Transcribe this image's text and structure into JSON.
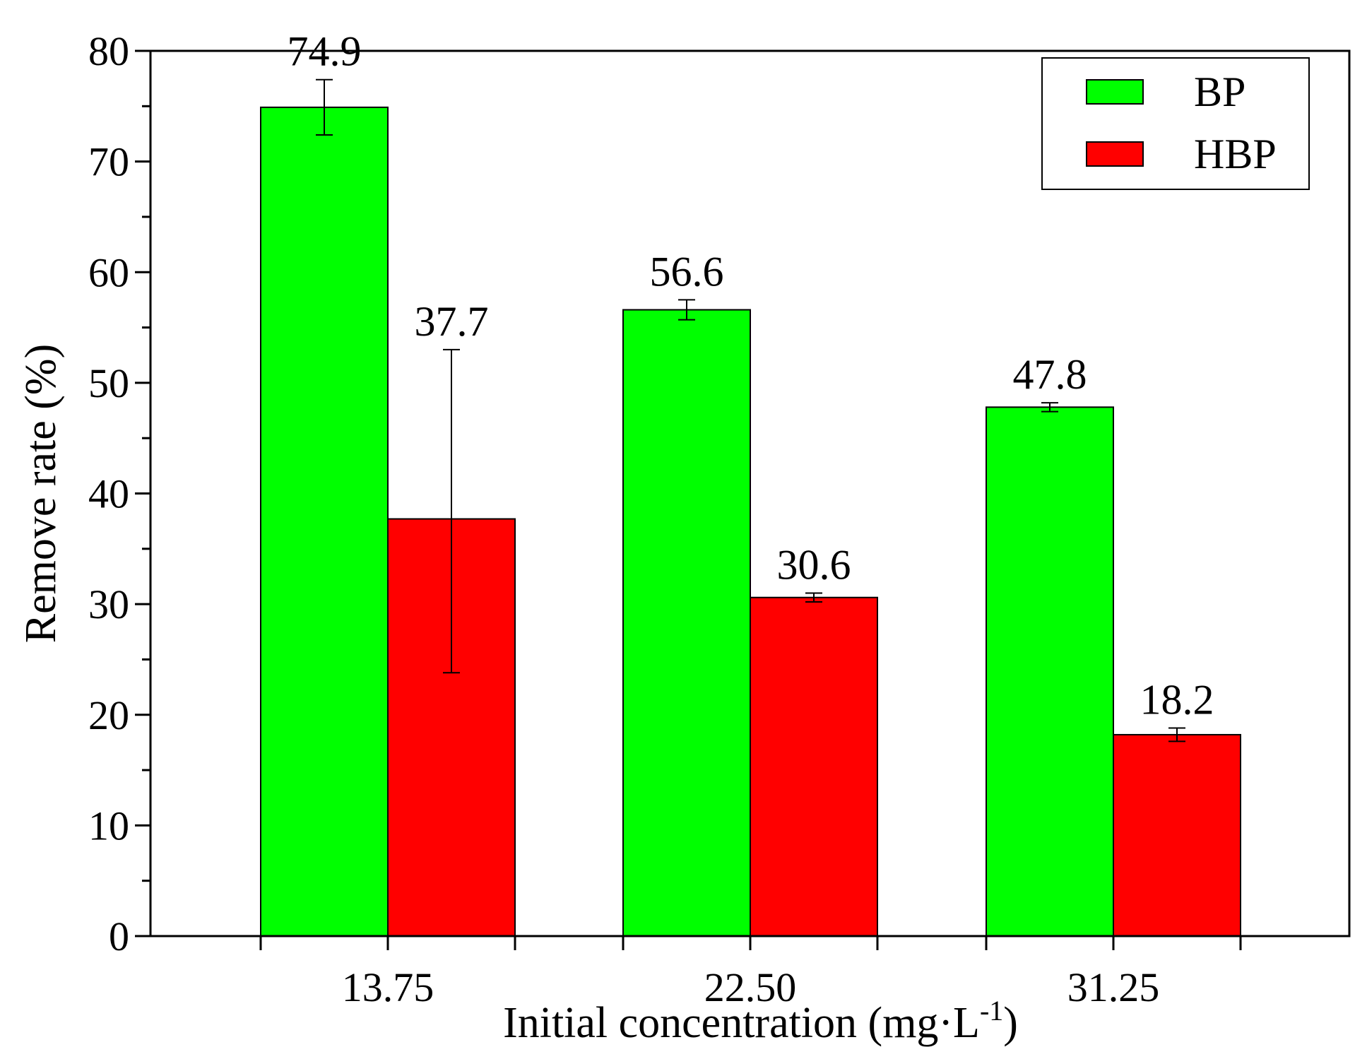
{
  "chart_data": {
    "type": "bar",
    "title": "",
    "xlabel": "Initial concentration (mg·L",
    "xlabel_superscript": "-1",
    "xlabel_suffix": ")",
    "ylabel": "Remove rate (%)",
    "ylim": [
      0,
      80
    ],
    "ytick_step": 10,
    "categories": [
      "13.75",
      "22.50",
      "31.25"
    ],
    "series": [
      {
        "name": "BP",
        "color": "#00ff00",
        "values": [
          74.9,
          56.6,
          47.8
        ],
        "value_labels": [
          "74.9",
          "56.6",
          "47.8"
        ],
        "error_low": [
          72.4,
          55.7,
          47.4
        ],
        "error_high": [
          77.4,
          57.5,
          48.2
        ]
      },
      {
        "name": "HBP",
        "color": "#ff0000",
        "values": [
          37.7,
          30.6,
          18.2
        ],
        "value_labels": [
          "37.7",
          "30.6",
          "18.2"
        ],
        "error_low": [
          23.8,
          30.2,
          17.6
        ],
        "error_high": [
          53.0,
          31.0,
          18.8
        ]
      }
    ],
    "legend_position": "top-right",
    "grid": false
  }
}
